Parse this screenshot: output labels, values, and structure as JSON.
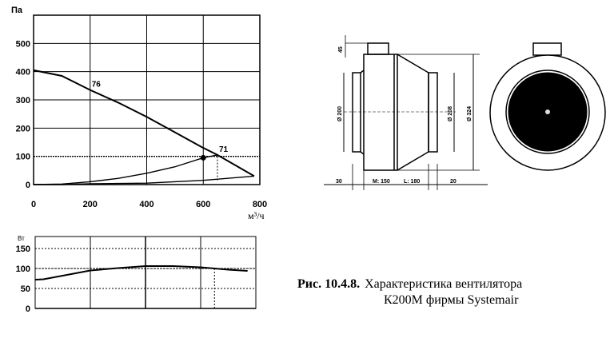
{
  "chart_data": [
    {
      "type": "line",
      "ylabel": "Па",
      "xlabel": "м³/ч",
      "xlim": [
        0,
        800
      ],
      "ylim": [
        0,
        600
      ],
      "x_ticks": [
        "0",
        "200",
        "400",
        "600",
        "800"
      ],
      "y_ticks": [
        "0",
        "100",
        "200",
        "300",
        "400",
        "500"
      ],
      "grid": true,
      "series": [
        {
          "x": [
            0,
            100,
            200,
            300,
            400,
            500,
            600,
            650,
            780
          ],
          "y": [
            405,
            385,
            335,
            290,
            240,
            185,
            130,
            105,
            30
          ]
        },
        {
          "x": [
            0,
            100,
            200,
            300,
            400,
            500,
            600,
            650
          ],
          "y": [
            0,
            2,
            10,
            22,
            40,
            63,
            95,
            105
          ]
        },
        {
          "x": [
            0,
            100,
            200,
            400,
            600,
            780
          ],
          "y": [
            0,
            0,
            3,
            5,
            15,
            30
          ]
        }
      ],
      "annotations": [
        {
          "text": "76",
          "x": 200,
          "y": 335
        },
        {
          "text": "71",
          "x": 650,
          "y": 105
        }
      ],
      "operating_point": {
        "x": 650,
        "y": 100
      },
      "marker": {
        "x": 600,
        "y": 95
      }
    },
    {
      "type": "line",
      "ylabel": "Вт",
      "xlim": [
        0,
        800
      ],
      "ylim": [
        0,
        180
      ],
      "y_ticks": [
        "0",
        "50",
        "100",
        "150"
      ],
      "grid": true,
      "series": [
        {
          "x": [
            0,
            30,
            100,
            200,
            300,
            400,
            500,
            600,
            700,
            770
          ],
          "y": [
            72,
            73,
            82,
            95,
            101,
            106,
            106,
            103,
            97,
            94
          ]
        },
        {
          "x": [
            0,
            800
          ],
          "y": [
            0,
            0
          ]
        }
      ],
      "operating_x": 650,
      "reference_y": 100
    }
  ],
  "drawing": {
    "dims": {
      "top": "45",
      "inlet": "Ø 200",
      "outlet": "Ø 208",
      "body": "Ø 324",
      "left": "30",
      "m": "M: 150",
      "l": "L: 180",
      "right": "20"
    }
  },
  "caption": {
    "label": "Рис. 10.4.8.",
    "line1": "Характеристика вентилятора",
    "line2": "К200М фирмы Systemair"
  }
}
